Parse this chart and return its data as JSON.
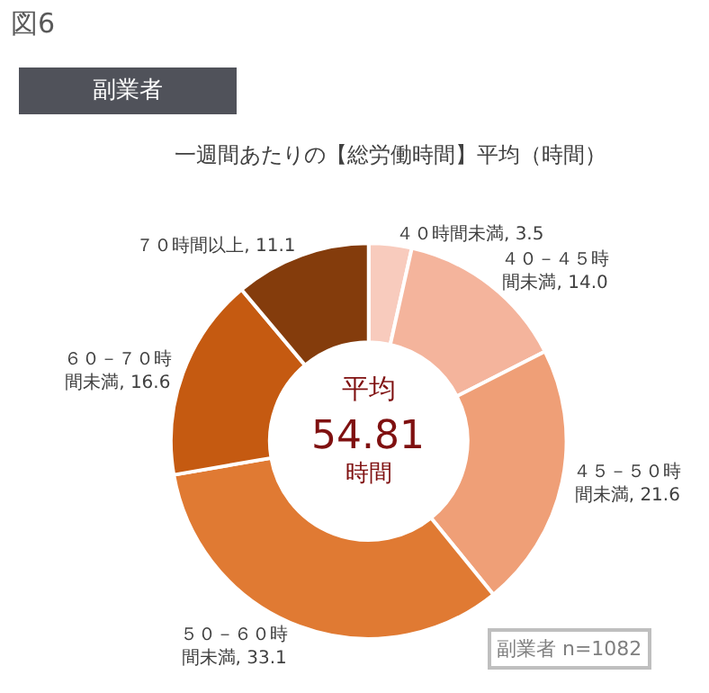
{
  "chart_data": {
    "type": "donut",
    "title": "一週間あたりの【総労働時間】平均（時間）",
    "subtitle": "副業者",
    "categories": [
      "４０時間未満",
      "４０－４５時間未満",
      "４５－５０時間未満",
      "５０－６０時間未満",
      "６０－７０時間未満",
      "７０時間以上"
    ],
    "values": [
      3.5,
      14.0,
      21.6,
      33.1,
      16.6,
      11.1
    ],
    "value_labels": [
      "3.5",
      "14.0",
      "21.6",
      "33.1",
      "16.6",
      "11.1"
    ],
    "colors": [
      "#f8cbbd",
      "#f4b49c",
      "#ef9f77",
      "#e07a33",
      "#c55a11",
      "#843c0c"
    ],
    "legend": false,
    "annotations": [
      "図6",
      "平均",
      "54.81",
      "時間",
      "副業者 n=1082"
    ]
  }
}
